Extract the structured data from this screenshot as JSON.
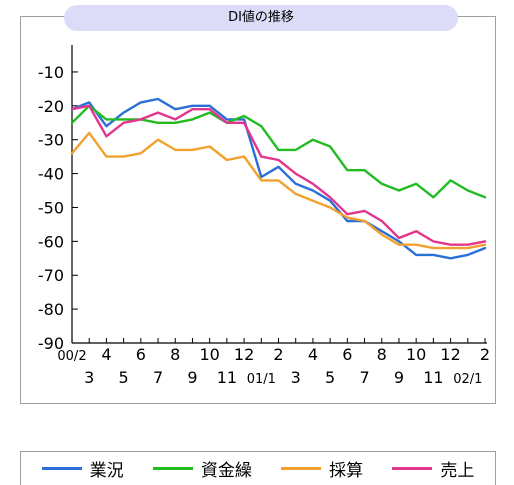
{
  "chart_data": {
    "type": "line",
    "title": "DI値の推移",
    "xlabel": "",
    "ylabel": "",
    "ylim": [
      -90,
      -5
    ],
    "yticks": [
      -10,
      -20,
      -30,
      -40,
      -50,
      -60,
      -70,
      -80,
      -90
    ],
    "x_tick_labels": [
      {
        "i": 0,
        "row": 1,
        "label": "00/2"
      },
      {
        "i": 1,
        "row": 2,
        "label": "3"
      },
      {
        "i": 2,
        "row": 1,
        "label": "4"
      },
      {
        "i": 3,
        "row": 2,
        "label": "5"
      },
      {
        "i": 4,
        "row": 1,
        "label": "6"
      },
      {
        "i": 5,
        "row": 2,
        "label": "7"
      },
      {
        "i": 6,
        "row": 1,
        "label": "8"
      },
      {
        "i": 7,
        "row": 2,
        "label": "9"
      },
      {
        "i": 8,
        "row": 1,
        "label": "10"
      },
      {
        "i": 9,
        "row": 2,
        "label": "11"
      },
      {
        "i": 10,
        "row": 1,
        "label": "12"
      },
      {
        "i": 11,
        "row": 2,
        "label": "01/1"
      },
      {
        "i": 12,
        "row": 1,
        "label": "2"
      },
      {
        "i": 13,
        "row": 2,
        "label": "3"
      },
      {
        "i": 14,
        "row": 1,
        "label": "4"
      },
      {
        "i": 15,
        "row": 2,
        "label": "5"
      },
      {
        "i": 16,
        "row": 1,
        "label": "6"
      },
      {
        "i": 17,
        "row": 2,
        "label": "7"
      },
      {
        "i": 18,
        "row": 1,
        "label": "8"
      },
      {
        "i": 19,
        "row": 2,
        "label": "9"
      },
      {
        "i": 20,
        "row": 1,
        "label": "10"
      },
      {
        "i": 21,
        "row": 2,
        "label": "11"
      },
      {
        "i": 22,
        "row": 1,
        "label": "12"
      },
      {
        "i": 23,
        "row": 2,
        "label": "02/1"
      },
      {
        "i": 24,
        "row": 1,
        "label": "2"
      }
    ],
    "series": [
      {
        "name": "業況",
        "color": "#2a6fd6",
        "values": [
          -21,
          -19,
          -26,
          -22,
          -19,
          -18,
          -21,
          -20,
          -20,
          -24,
          -24,
          -41,
          -38,
          -43,
          -45,
          -48,
          -54,
          -54,
          -57,
          -60,
          -64,
          -64,
          -65,
          -64,
          -62
        ]
      },
      {
        "name": "資金繰",
        "color": "#22bb22",
        "values": [
          -25,
          -20,
          -24,
          -24,
          -24,
          -25,
          -25,
          -24,
          -22,
          -25,
          -23,
          -26,
          -33,
          -33,
          -30,
          -32,
          -39,
          -39,
          -43,
          -45,
          -43,
          -47,
          -42,
          -45,
          -47
        ]
      },
      {
        "name": "採算",
        "color": "#f2a12e",
        "values": [
          -34,
          -28,
          -35,
          -35,
          -34,
          -30,
          -33,
          -33,
          -32,
          -36,
          -35,
          -42,
          -42,
          -46,
          -48,
          -50,
          -53,
          -54,
          -58,
          -61,
          -61,
          -62,
          -62,
          -62,
          -61
        ]
      },
      {
        "name": "売上",
        "color": "#e2358e",
        "values": [
          -21,
          -20,
          -29,
          -25,
          -24,
          -22,
          -24,
          -21,
          -21,
          -25,
          -25,
          -35,
          -36,
          -40,
          -43,
          -47,
          -52,
          -51,
          -54,
          -59,
          -57,
          -60,
          -61,
          -61,
          -60
        ]
      }
    ],
    "legend_position": "bottom",
    "grid": false
  }
}
